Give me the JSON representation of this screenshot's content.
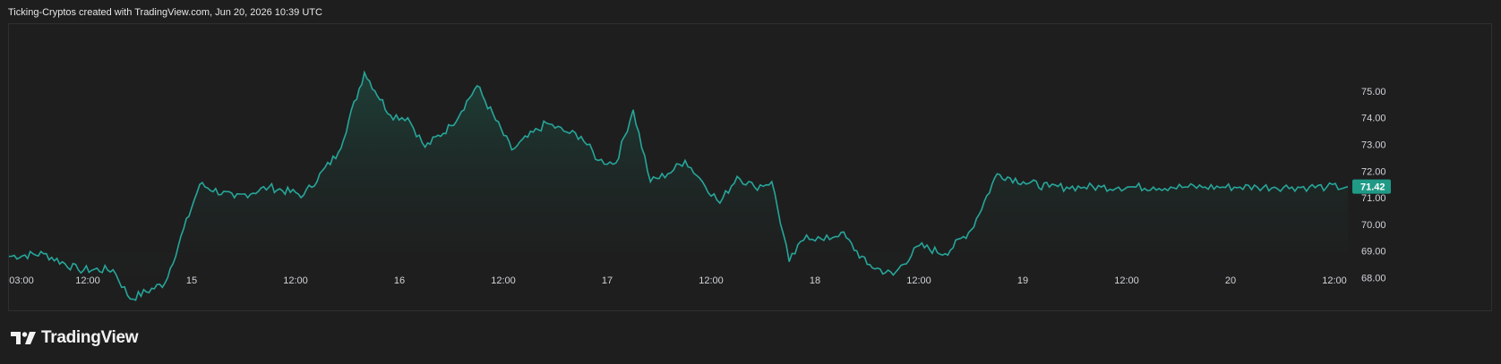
{
  "header": {
    "caption": "Ticking-Cryptos created with TradingView.com, Jun 20, 2026 10:39 UTC"
  },
  "brand": {
    "name": "TradingView",
    "logo_icon": "tradingview-logo-icon"
  },
  "colors": {
    "background": "#1e1e1e",
    "line": "#26a69a",
    "area_top": "#1f4a40",
    "price_tag": "#1f9a86",
    "text": "#d1d4dc",
    "border": "#2f2f2f"
  },
  "chart_data": {
    "type": "area",
    "ylim": [
      67.3,
      76.1
    ],
    "y_ticks": [
      "68.00",
      "69.00",
      "70.00",
      "71.00",
      "72.00",
      "73.00",
      "74.00",
      "75.00"
    ],
    "x_tick_labels": [
      "03:00",
      "12:00",
      "15",
      "12:00",
      "16",
      "12:00",
      "17",
      "12:00",
      "18",
      "12:00",
      "19",
      "12:00",
      "20",
      "12:00"
    ],
    "last_price_label": "71.42",
    "x_hours_from_jun14_00": [
      0,
      4,
      8,
      12,
      14,
      18,
      22,
      26,
      30,
      34,
      38,
      41,
      44,
      46,
      48,
      51,
      54,
      58,
      62,
      64,
      66,
      68,
      70,
      72,
      74,
      76,
      78,
      80,
      82,
      84,
      86,
      88,
      90,
      92,
      94,
      96,
      99,
      102,
      105,
      108,
      111,
      114,
      117,
      120,
      122,
      124,
      126,
      128,
      130,
      132,
      134,
      136,
      138,
      140,
      142,
      144,
      146,
      148,
      150,
      152,
      154
    ],
    "values": [
      68.8,
      68.9,
      68.3,
      68.3,
      67.2,
      67.8,
      71.5,
      71.0,
      71.4,
      71.1,
      72.7,
      75.7,
      74.1,
      74.0,
      72.9,
      73.7,
      75.2,
      72.8,
      73.8,
      73.5,
      73.3,
      72.4,
      72.3,
      74.3,
      71.6,
      71.9,
      72.4,
      71.6,
      70.8,
      71.8,
      71.4,
      71.6,
      68.6,
      69.6,
      69.4,
      69.7,
      68.5,
      68.1,
      69.2,
      68.9,
      69.8,
      71.9,
      71.6,
      71.4,
      71.4,
      71.4,
      71.4,
      71.4,
      71.4,
      71.4,
      71.4,
      71.4,
      71.4,
      71.4,
      71.4,
      71.4,
      71.4,
      71.4,
      71.4,
      71.4,
      71.4
    ]
  }
}
